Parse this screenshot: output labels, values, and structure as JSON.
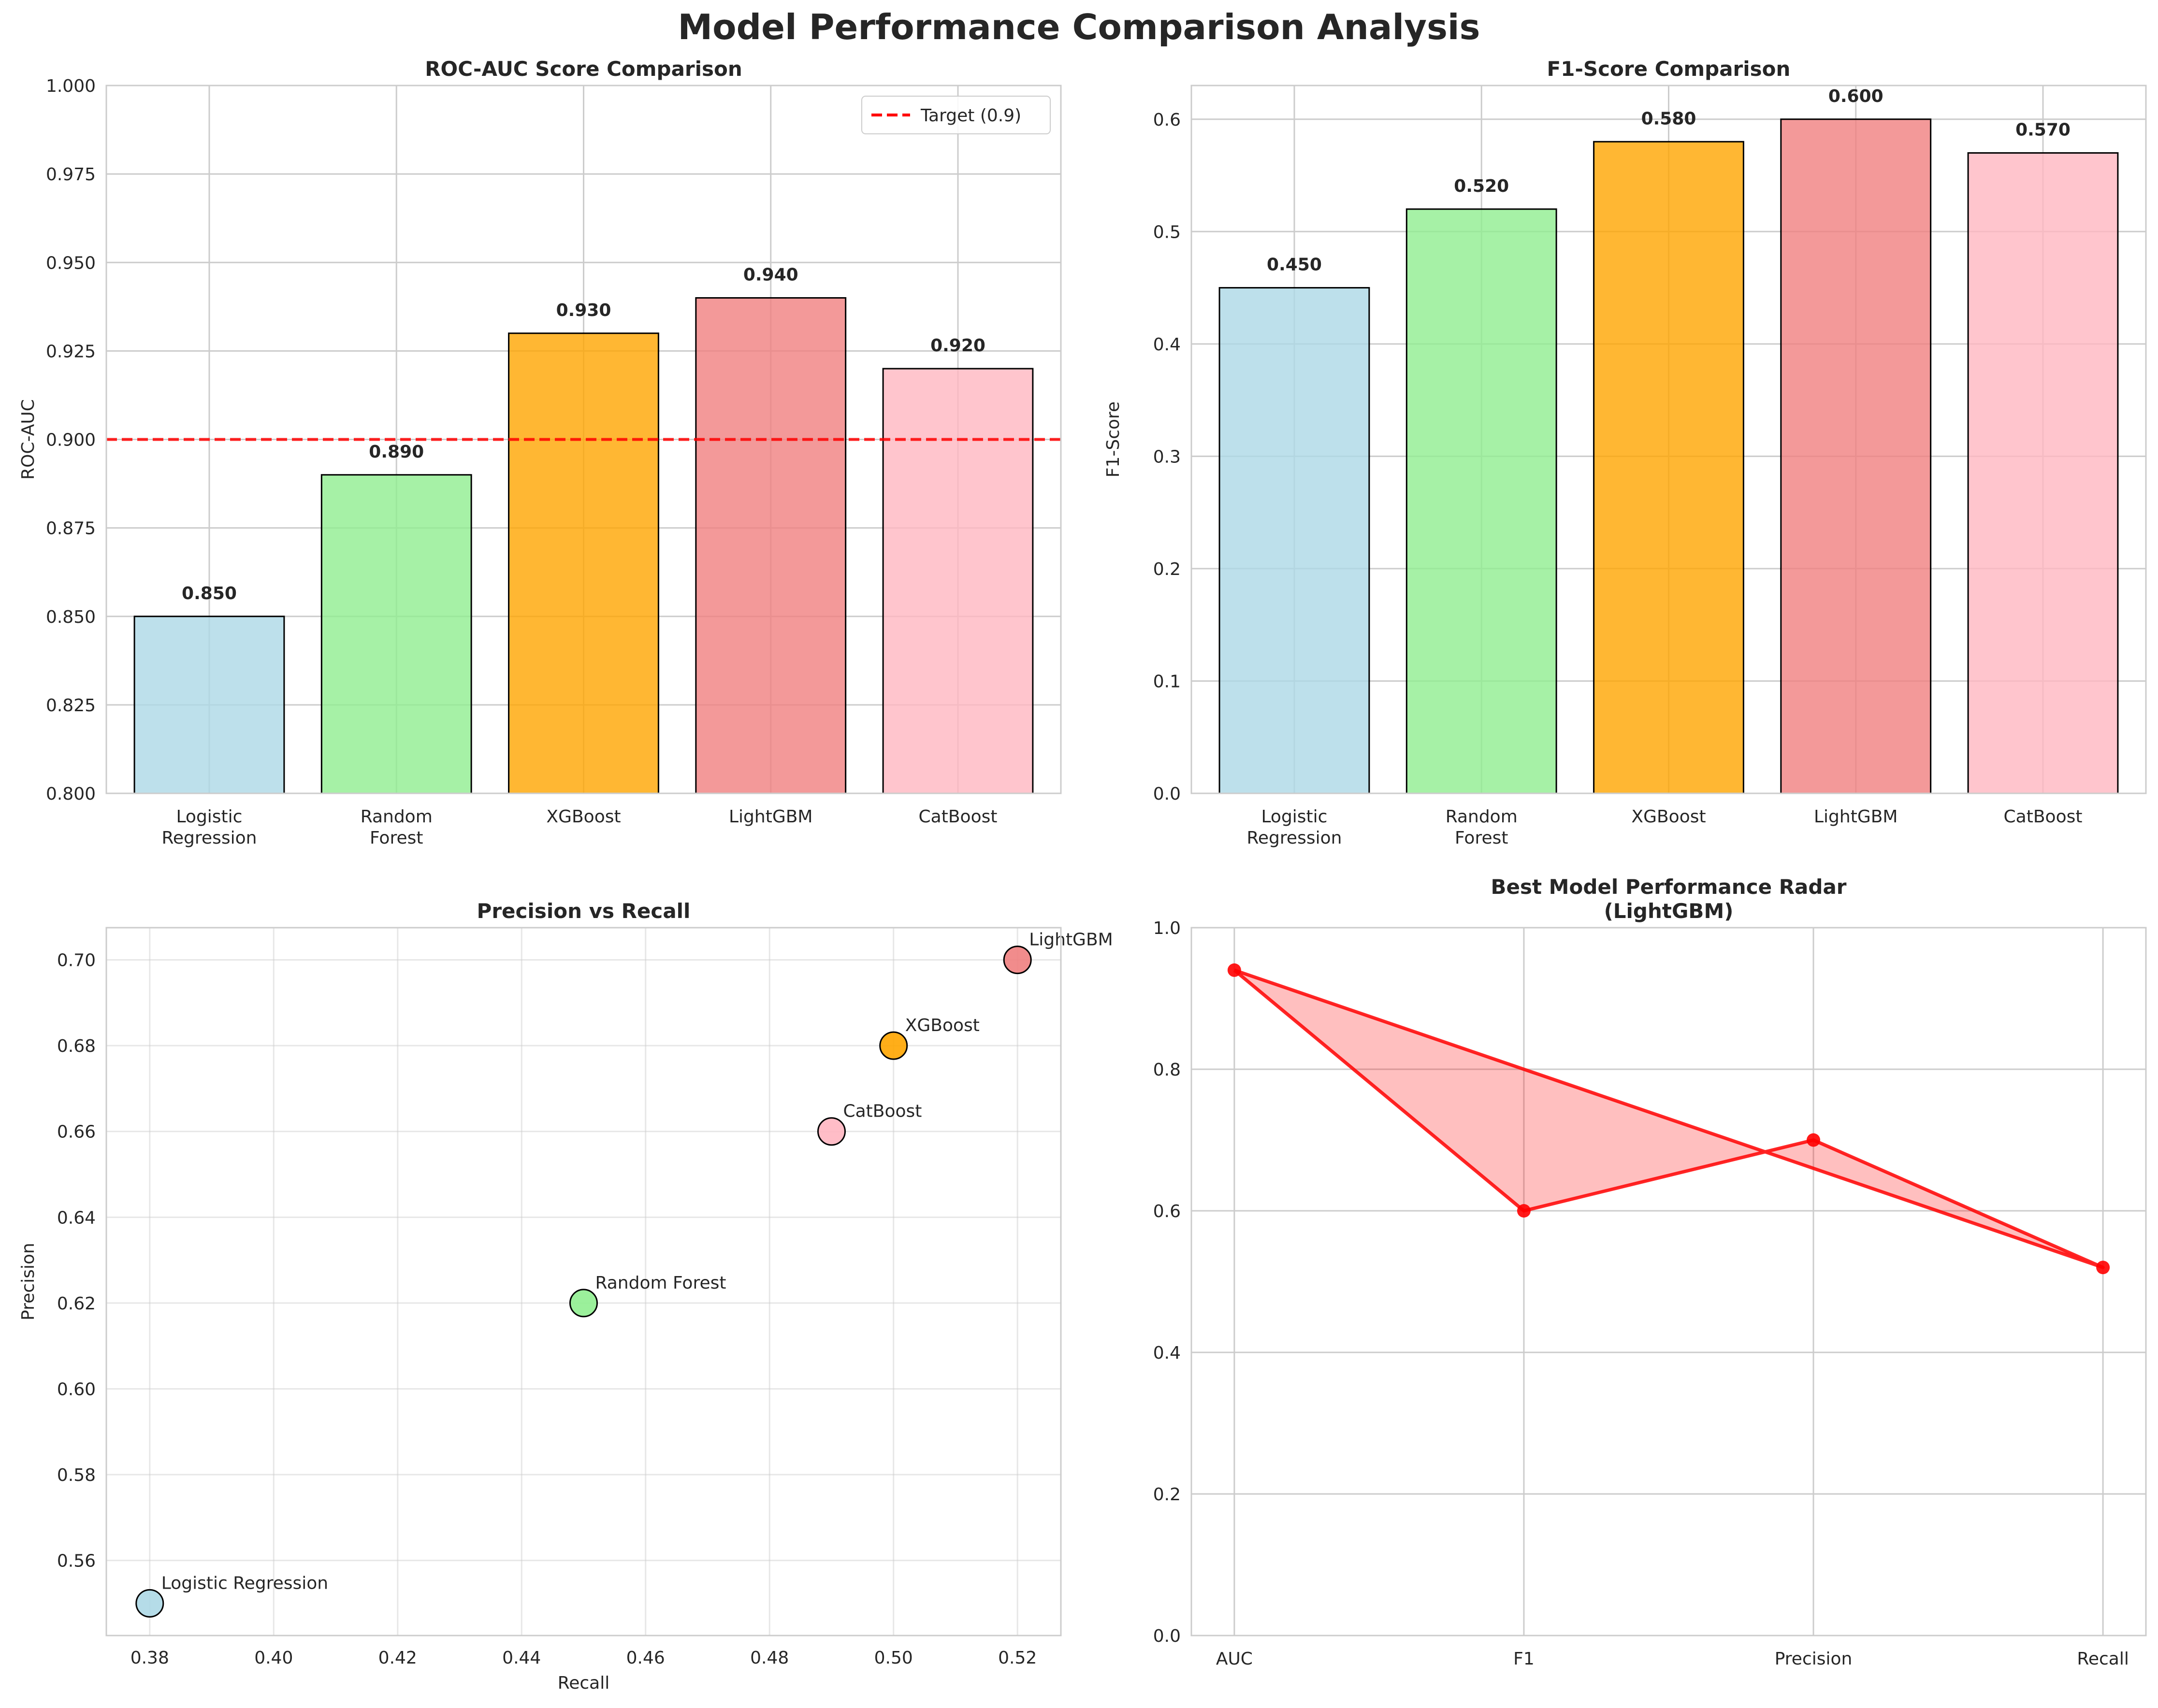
{
  "suptitle": "Model Performance Comparison Analysis",
  "chart_data": [
    {
      "id": "roc_auc",
      "type": "bar",
      "title": "ROC-AUC Score Comparison",
      "xlabel": "",
      "ylabel": "ROC-AUC",
      "categories": [
        [
          "Logistic",
          "Regression"
        ],
        [
          "Random",
          "Forest"
        ],
        [
          "XGBoost"
        ],
        [
          "LightGBM"
        ],
        [
          "CatBoost"
        ]
      ],
      "values": [
        0.85,
        0.89,
        0.93,
        0.94,
        0.92
      ],
      "value_labels": [
        "0.850",
        "0.890",
        "0.930",
        "0.940",
        "0.920"
      ],
      "colors": [
        "#add8e6",
        "#90ee90",
        "#ffa500",
        "#f08080",
        "#ffb6c1"
      ],
      "ylim": [
        0.8,
        1.0
      ],
      "yticks": [
        0.8,
        0.825,
        0.85,
        0.875,
        0.9,
        0.925,
        0.95,
        0.975,
        1.0
      ],
      "ytick_labels": [
        "0.800",
        "0.825",
        "0.850",
        "0.875",
        "0.900",
        "0.925",
        "0.950",
        "0.975",
        "1.000"
      ],
      "grid": true,
      "reference_line": {
        "y": 0.9,
        "label": "Target (0.9)",
        "color": "#ff0000",
        "style": "dashed"
      },
      "legend": "top-right"
    },
    {
      "id": "f1",
      "type": "bar",
      "title": "F1-Score Comparison",
      "xlabel": "",
      "ylabel": "F1-Score",
      "categories": [
        [
          "Logistic",
          "Regression"
        ],
        [
          "Random",
          "Forest"
        ],
        [
          "XGBoost"
        ],
        [
          "LightGBM"
        ],
        [
          "CatBoost"
        ]
      ],
      "values": [
        0.45,
        0.52,
        0.58,
        0.6,
        0.57
      ],
      "value_labels": [
        "0.450",
        "0.520",
        "0.580",
        "0.600",
        "0.570"
      ],
      "colors": [
        "#add8e6",
        "#90ee90",
        "#ffa500",
        "#f08080",
        "#ffb6c1"
      ],
      "ylim": [
        0,
        0.63
      ],
      "yticks": [
        0,
        0.1,
        0.2,
        0.3,
        0.4,
        0.5,
        0.6
      ],
      "ytick_labels": [
        "0.0",
        "0.1",
        "0.2",
        "0.3",
        "0.4",
        "0.5",
        "0.6"
      ],
      "grid": true
    },
    {
      "id": "pr",
      "type": "scatter",
      "title": "Precision vs Recall",
      "xlabel": "Recall",
      "ylabel": "Precision",
      "points": [
        {
          "label": "Logistic Regression",
          "x": 0.38,
          "y": 0.55,
          "color": "#add8e6"
        },
        {
          "label": "Random Forest",
          "x": 0.45,
          "y": 0.62,
          "color": "#90ee90"
        },
        {
          "label": "XGBoost",
          "x": 0.5,
          "y": 0.68,
          "color": "#ffa500"
        },
        {
          "label": "LightGBM",
          "x": 0.52,
          "y": 0.7,
          "color": "#f08080"
        },
        {
          "label": "CatBoost",
          "x": 0.49,
          "y": 0.66,
          "color": "#ffb6c1"
        }
      ],
      "xlim": [
        0.373,
        0.527
      ],
      "ylim": [
        0.5425,
        0.7075
      ],
      "xticks": [
        0.38,
        0.4,
        0.42,
        0.44,
        0.46,
        0.48,
        0.5,
        0.52
      ],
      "xtick_labels": [
        "0.38",
        "0.40",
        "0.42",
        "0.44",
        "0.46",
        "0.48",
        "0.50",
        "0.52"
      ],
      "yticks": [
        0.56,
        0.58,
        0.6,
        0.62,
        0.64,
        0.66,
        0.68,
        0.7
      ],
      "ytick_labels": [
        "0.56",
        "0.58",
        "0.60",
        "0.62",
        "0.64",
        "0.66",
        "0.68",
        "0.70"
      ],
      "grid": true
    },
    {
      "id": "radar",
      "type": "line",
      "title": [
        "Best Model Performance Radar",
        "(LightGBM)"
      ],
      "xlabel": "",
      "ylabel": "",
      "categories": [
        "AUC",
        "F1",
        "Precision",
        "Recall"
      ],
      "values": [
        0.94,
        0.6,
        0.7,
        0.52
      ],
      "closed": true,
      "line_color": "#ff0000",
      "fill_color": "#ff0000",
      "ylim": [
        0,
        1.0
      ],
      "yticks": [
        0,
        0.2,
        0.4,
        0.6,
        0.8,
        1.0
      ],
      "ytick_labels": [
        "0.0",
        "0.2",
        "0.4",
        "0.6",
        "0.8",
        "1.0"
      ],
      "grid": true
    }
  ]
}
